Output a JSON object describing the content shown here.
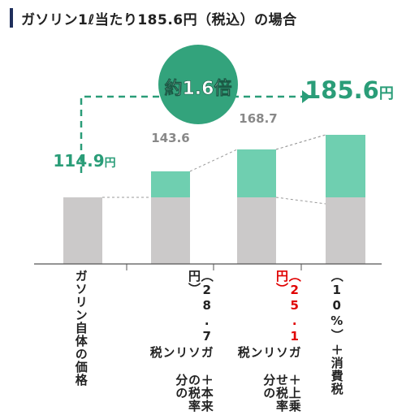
{
  "title": "ガソリン1ℓ当たり185.6円（税込）の場合",
  "colors": {
    "base": "#cbc9c9",
    "tax": "#6fcfb0",
    "accent": "#2a9d78",
    "bubble": "#33a37c",
    "axis": "#555555",
    "dashed": "#999999",
    "value_grey": "#888888",
    "red": "#e00000"
  },
  "chart_data": {
    "type": "bar",
    "stacked": true,
    "title": "ガソリン1ℓ当たり185.6円（税込）の場合",
    "categories": [
      "ガソリン自体の価格",
      "＋本来の税率分のガソリン税（28.7円）",
      "＋上乗せ税率分のガソリン税（25.1円）",
      "＋消費税（10%）"
    ],
    "series": [
      {
        "values": [
          114.9,
          114.9,
          114.9,
          114.9
        ]
      },
      {
        "values": [
          0,
          28.7,
          53.8,
          70.7
        ]
      }
    ],
    "totals": [
      114.9,
      143.6,
      168.7,
      185.6
    ],
    "value_labels": [
      "114.9",
      "143.6",
      "168.7",
      "185.6"
    ],
    "value_unit": "円",
    "ylim": [
      0,
      200
    ],
    "annotation": "約1.6倍",
    "grid": false
  },
  "category_labels": [
    {
      "lines": [
        [
          {
            "t": "ガソリン自体の価格"
          }
        ]
      ]
    },
    {
      "lines": [
        [
          {
            "t": "＋本来の税率分の"
          }
        ],
        [
          {
            "t": "ガソリン税"
          }
        ],
        [
          {
            "t": "（28.7円）"
          }
        ]
      ]
    },
    {
      "lines": [
        [
          {
            "t": "＋上乗せ税率分の"
          }
        ],
        [
          {
            "t": "ガソリン税"
          }
        ],
        [
          {
            "t": "（25.1円）",
            "red": true
          }
        ]
      ]
    },
    {
      "lines": [
        [
          {
            "t": "＋消費税"
          }
        ],
        [
          {
            "t": "（10%）"
          }
        ]
      ]
    }
  ]
}
